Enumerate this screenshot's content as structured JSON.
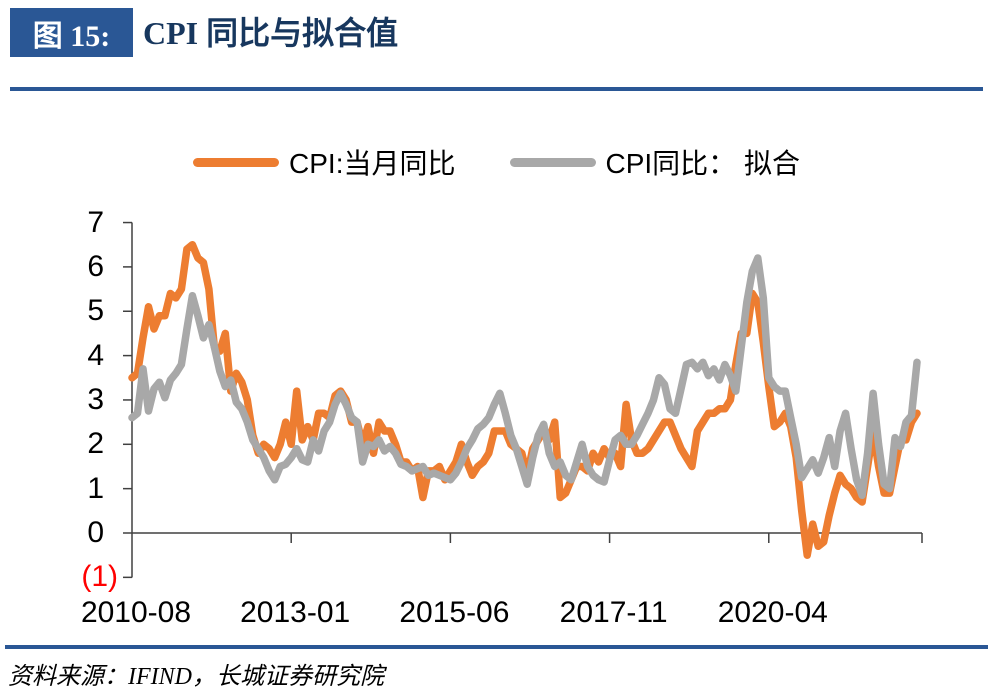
{
  "header": {
    "figure_label": "图 15:",
    "title": "CPI 同比与拟合值"
  },
  "legend": [
    {
      "label": "CPI:当月同比",
      "color_key": "orange"
    },
    {
      "label": "CPI同比： 拟合",
      "color_key": "gray"
    }
  ],
  "colors": {
    "orange": "#ED7D31",
    "gray": "#A8A8A8",
    "accent_blue": "#2A5795",
    "title_text": "#17375E",
    "axis": "#404040",
    "negative_label": "#FF0000"
  },
  "source_line": "资料来源：IFIND，长城证券研究院",
  "chart_data": {
    "type": "line",
    "frequency": "monthly",
    "x_start": "2010-08",
    "x_end": "2022-07",
    "x_tick_labels": [
      "2010-08",
      "2013-01",
      "2015-06",
      "2017-11",
      "2020-04"
    ],
    "x_tick_months": [
      0,
      29,
      58,
      87,
      116
    ],
    "y_ticks": [
      7,
      6,
      5,
      4,
      3,
      2,
      1,
      0,
      -1
    ],
    "y_tick_labels": [
      "7",
      "6",
      "5",
      "4",
      "3",
      "2",
      "1",
      "0",
      "(1)"
    ],
    "ylim": [
      -1,
      7
    ],
    "grid": false,
    "legend_position": "top-center",
    "series": [
      {
        "name": "CPI:当月同比",
        "color_key": "orange",
        "values": [
          3.5,
          3.6,
          4.4,
          5.1,
          4.6,
          4.9,
          4.9,
          5.4,
          5.3,
          5.5,
          6.4,
          6.5,
          6.2,
          6.1,
          5.5,
          4.2,
          4.1,
          4.5,
          3.2,
          3.6,
          3.4,
          3.0,
          2.2,
          1.8,
          2.0,
          1.9,
          1.7,
          2.0,
          2.5,
          2.0,
          3.2,
          2.1,
          2.4,
          2.1,
          2.7,
          2.7,
          2.6,
          3.1,
          3.2,
          3.0,
          2.5,
          2.5,
          2.0,
          2.4,
          1.8,
          2.5,
          2.3,
          2.3,
          2.0,
          1.6,
          1.6,
          1.4,
          1.5,
          0.8,
          1.4,
          1.4,
          1.5,
          1.2,
          1.4,
          1.6,
          2.0,
          1.6,
          1.3,
          1.5,
          1.6,
          1.8,
          2.3,
          2.3,
          2.3,
          2.0,
          1.9,
          1.8,
          1.3,
          1.9,
          2.1,
          2.3,
          2.1,
          2.5,
          0.8,
          0.9,
          1.2,
          1.5,
          1.5,
          1.4,
          1.8,
          1.6,
          1.9,
          1.7,
          1.8,
          1.5,
          2.9,
          2.1,
          1.8,
          1.8,
          1.9,
          2.1,
          2.3,
          2.5,
          2.5,
          2.2,
          1.9,
          1.7,
          1.5,
          2.3,
          2.5,
          2.7,
          2.7,
          2.8,
          2.8,
          3.0,
          3.8,
          4.5,
          4.5,
          5.4,
          5.2,
          4.3,
          3.3,
          2.4,
          2.5,
          2.7,
          2.4,
          1.7,
          0.5,
          -0.5,
          0.2,
          -0.3,
          -0.2,
          0.4,
          0.9,
          1.3,
          1.1,
          1.0,
          0.8,
          0.7,
          1.5,
          2.3,
          1.5,
          0.9,
          0.9,
          1.5,
          2.1,
          2.1,
          2.5,
          2.7
        ]
      },
      {
        "name": "CPI同比： 拟合",
        "color_key": "gray",
        "values": [
          2.6,
          2.7,
          3.7,
          2.75,
          3.25,
          3.4,
          3.05,
          3.45,
          3.6,
          3.8,
          4.6,
          5.35,
          4.9,
          4.4,
          4.7,
          4.2,
          3.65,
          3.3,
          3.45,
          2.95,
          2.8,
          2.5,
          2.1,
          1.9,
          1.7,
          1.4,
          1.2,
          1.5,
          1.55,
          1.7,
          1.9,
          1.65,
          1.6,
          2.1,
          1.85,
          2.3,
          2.5,
          2.9,
          3.15,
          2.9,
          2.6,
          2.5,
          1.6,
          2.0,
          1.95,
          2.1,
          1.85,
          1.95,
          1.8,
          1.55,
          1.5,
          1.4,
          1.45,
          1.5,
          1.3,
          1.35,
          1.3,
          1.25,
          1.2,
          1.35,
          1.6,
          1.9,
          2.1,
          2.35,
          2.45,
          2.6,
          2.9,
          3.15,
          2.7,
          2.2,
          1.9,
          1.5,
          1.1,
          1.7,
          2.2,
          2.45,
          1.8,
          1.5,
          1.6,
          1.3,
          1.2,
          1.6,
          2.0,
          1.5,
          1.3,
          1.2,
          1.15,
          1.65,
          2.1,
          2.2,
          2.0,
          2.0,
          2.2,
          2.45,
          2.7,
          3.0,
          3.5,
          3.35,
          2.8,
          2.7,
          3.25,
          3.8,
          3.85,
          3.7,
          3.85,
          3.55,
          3.7,
          3.45,
          3.8,
          3.55,
          3.2,
          4.2,
          5.2,
          5.9,
          6.2,
          5.3,
          3.5,
          3.3,
          3.2,
          3.2,
          2.6,
          2.0,
          1.25,
          1.45,
          1.65,
          1.35,
          1.7,
          2.15,
          1.5,
          2.3,
          2.7,
          1.9,
          1.2,
          0.85,
          1.8,
          3.15,
          2.0,
          1.1,
          1.0,
          2.15,
          1.95,
          2.5,
          2.65,
          3.85
        ]
      }
    ]
  }
}
